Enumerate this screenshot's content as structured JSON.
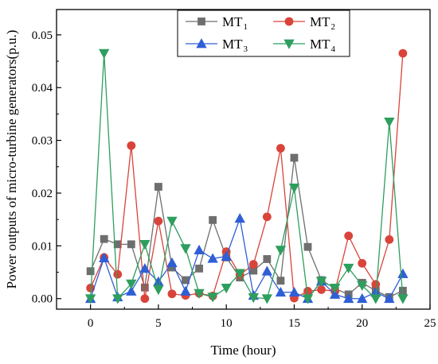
{
  "chart_data": {
    "type": "line",
    "xlabel": "Time (hour)",
    "ylabel": "Power outputs of micro-turbine generators(p.u.)",
    "xlim": [
      -2.5,
      25
    ],
    "ylim": [
      -0.002,
      0.0548
    ],
    "x_ticks": [
      0,
      5,
      10,
      15,
      20,
      25
    ],
    "x_tick_labels": [
      "0",
      "5",
      "10",
      "15",
      "20",
      "25"
    ],
    "y_ticks": [
      0,
      0.01,
      0.02,
      0.03,
      0.04,
      0.05
    ],
    "y_tick_labels": [
      "0.00",
      "0.01",
      "0.02",
      "0.03",
      "0.04",
      "0.05"
    ],
    "grid": false,
    "legend_position": "top-right",
    "x": [
      0,
      1,
      2,
      3,
      4,
      5,
      6,
      7,
      8,
      9,
      10,
      11,
      12,
      13,
      14,
      15,
      16,
      17,
      18,
      19,
      20,
      21,
      22,
      23
    ],
    "series": [
      {
        "name": "MT",
        "subscript": "1",
        "color": "#6e6e6e",
        "marker": "square",
        "values": [
          0.0052,
          0.0113,
          0.0103,
          0.0103,
          0.0021,
          0.0212,
          0.0059,
          0.0035,
          0.0057,
          0.0149,
          0.0078,
          0.004,
          0.0053,
          0.0075,
          0.0034,
          0.0267,
          0.0098,
          0.0035,
          0.0019,
          0.0008,
          0.003,
          0.0015,
          0.0003,
          0.0015
        ]
      },
      {
        "name": "MT",
        "subscript": "2",
        "color": "#d9443a",
        "marker": "circle",
        "values": [
          0.002,
          0.0078,
          0.0046,
          0.029,
          0.0,
          0.0147,
          0.0009,
          0.0006,
          0.001,
          0.0005,
          0.0089,
          0.0045,
          0.0065,
          0.0155,
          0.0285,
          0.0001,
          0.0014,
          0.0017,
          0.0014,
          0.0119,
          0.0067,
          0.0027,
          0.0112,
          0.0465
        ]
      },
      {
        "name": "MT",
        "subscript": "3",
        "color": "#2f5fd6",
        "marker": "triangle-up",
        "values": [
          0.0,
          0.0077,
          0.0003,
          0.0014,
          0.0057,
          0.0032,
          0.0068,
          0.0014,
          0.0092,
          0.0076,
          0.008,
          0.0152,
          0.0006,
          0.0052,
          0.0012,
          0.0012,
          0.0,
          0.0033,
          0.0008,
          0.0,
          0.0,
          0.0012,
          0.0,
          0.0047
        ]
      },
      {
        "name": "MT",
        "subscript": "4",
        "color": "#2e9e5e",
        "marker": "triangle-down",
        "values": [
          0.0,
          0.0465,
          0.0,
          0.0028,
          0.0103,
          0.0017,
          0.0147,
          0.0095,
          0.001,
          0.0003,
          0.002,
          0.0048,
          0.0002,
          0.0,
          0.0092,
          0.021,
          0.0,
          0.0033,
          0.002,
          0.0058,
          0.0025,
          0.0,
          0.0335,
          0.0
        ]
      }
    ]
  }
}
